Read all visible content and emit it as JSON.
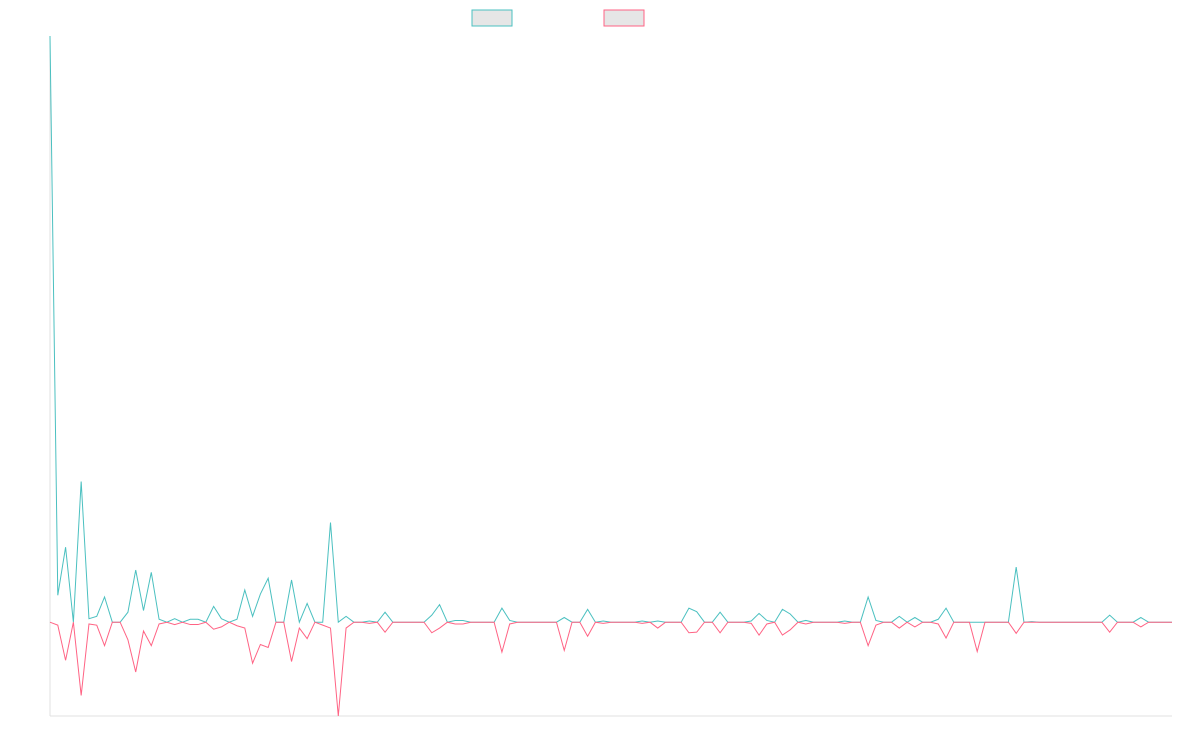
{
  "chart_data": {
    "type": "line",
    "ylim": [
      -16,
      100
    ],
    "series": [
      {
        "color": "#4bc0c0",
        "values": [
          100,
          4.6,
          12.8,
          0,
          24,
          0.6,
          1,
          4.3,
          0,
          0,
          1.7,
          8.9,
          2,
          8.5,
          0.5,
          0,
          0.6,
          0,
          0.5,
          0.5,
          0,
          2.7,
          0.6,
          0,
          0.5,
          5.5,
          1,
          4.8,
          7.5,
          0,
          0,
          7.2,
          0,
          3.2,
          0,
          0,
          17,
          0,
          1,
          0,
          0,
          0.2,
          0,
          1.7,
          0,
          0,
          0,
          0,
          0,
          1.2,
          3,
          0,
          0.3,
          0.3,
          0,
          0,
          0,
          0,
          2.4,
          0.3,
          0,
          0,
          0,
          0,
          0,
          0,
          0.8,
          0,
          0,
          2.2,
          0,
          0.2,
          0,
          0,
          0,
          0,
          0.2,
          0,
          0.2,
          0,
          0,
          0,
          2.4,
          1.8,
          0,
          0,
          1.7,
          0,
          0,
          0,
          0.2,
          1.5,
          0.3,
          0,
          2.2,
          1.4,
          0,
          0.3,
          0,
          0,
          0,
          0,
          0.2,
          0,
          0,
          4.3,
          0.3,
          0,
          0,
          1,
          0,
          0.8,
          0,
          0,
          0.5,
          2.4,
          0,
          0,
          0,
          0,
          0,
          0,
          0,
          0,
          9.4,
          0,
          0.1,
          0,
          0,
          0,
          0,
          0,
          0,
          0,
          0,
          0,
          1.2,
          0,
          0,
          0,
          0.8,
          0,
          0,
          0,
          0
        ]
      },
      {
        "color": "#ff6384",
        "values": [
          0,
          -0.5,
          -6.5,
          0,
          -12.5,
          -0.3,
          -0.5,
          -4,
          0,
          0,
          -3,
          -8.5,
          -1.5,
          -4,
          -0.3,
          0,
          -0.4,
          0,
          -0.4,
          -0.4,
          0,
          -1.2,
          -0.8,
          0,
          -0.6,
          -1,
          -7,
          -3.8,
          -4.3,
          0,
          0,
          -6.7,
          -1,
          -2.8,
          0,
          -0.5,
          -1,
          -16,
          -1,
          0,
          0,
          -0.2,
          0,
          -1.7,
          0,
          0,
          0,
          0,
          0,
          -1.8,
          -1,
          0,
          -0.3,
          -0.3,
          0,
          0,
          0,
          0,
          -5.1,
          -0.3,
          0,
          0,
          0,
          0,
          0,
          0,
          -4.8,
          0,
          0,
          -2.4,
          0,
          -0.2,
          0,
          0,
          0,
          0,
          -0.2,
          0,
          -1,
          0,
          0,
          0,
          -1.8,
          -1.7,
          0,
          0,
          -1.8,
          0,
          0,
          0,
          -0.2,
          -2.2,
          -0.3,
          0,
          -2.2,
          -1.3,
          0,
          -0.3,
          0,
          0,
          0,
          0,
          -0.2,
          0,
          0,
          -4,
          -0.5,
          0,
          0,
          -1,
          0,
          -0.8,
          0,
          0,
          -0.3,
          -2.7,
          0,
          0,
          0,
          -5,
          0,
          0,
          0,
          0,
          -1.9,
          0,
          0,
          0,
          0,
          0,
          0,
          0,
          0,
          0,
          0,
          0,
          -1.7,
          0,
          0,
          0,
          -0.8,
          0,
          0,
          0,
          0
        ]
      }
    ]
  }
}
